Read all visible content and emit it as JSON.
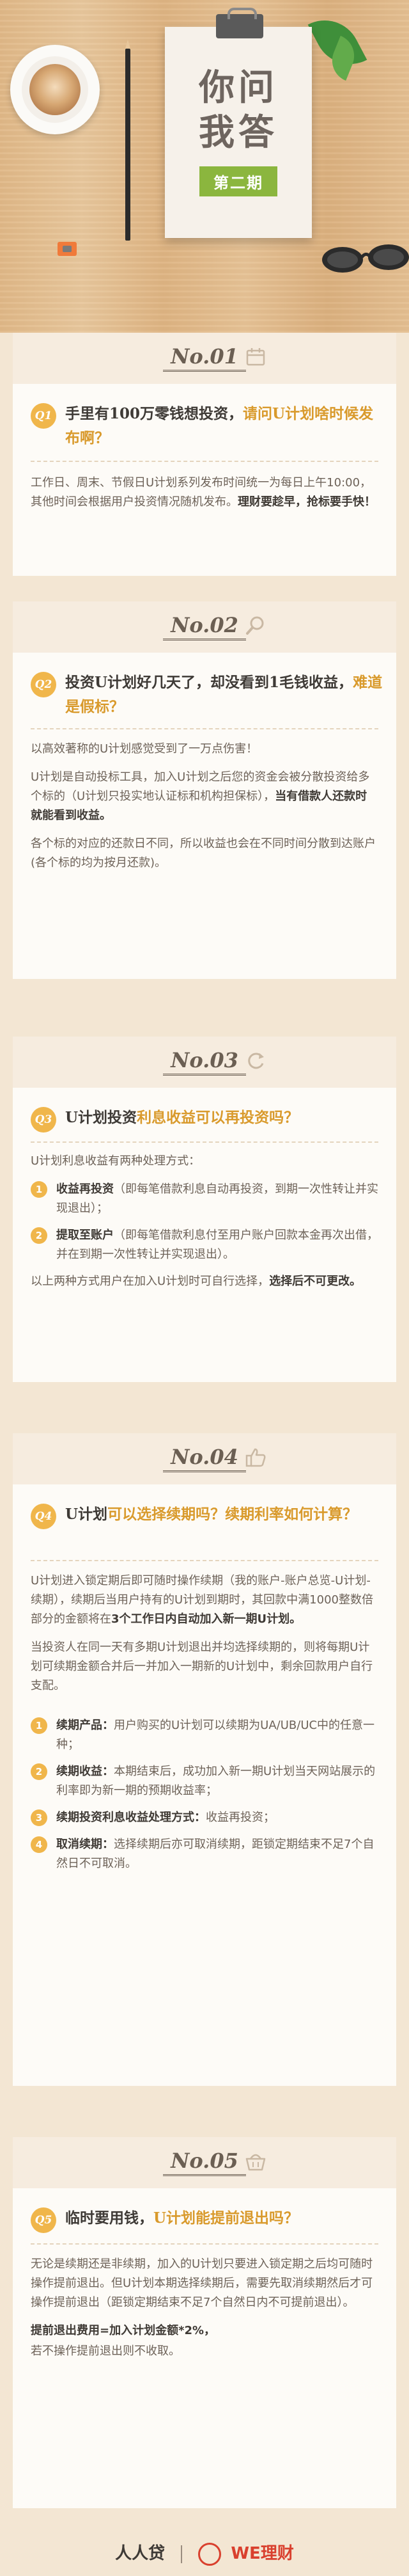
{
  "header": {
    "title_line1": "你问",
    "title_line2": "我答",
    "issue": "第二期"
  },
  "sections": [
    {
      "no": "No.01",
      "icon": "calendar-icon",
      "badge": "Q1",
      "question_pre": "手里有100万零钱想投资，",
      "question_hl": "请问U计划啥时候发布啊？",
      "paragraphs": [
        {
          "plain": "工作日、周末、节假日U计划系列发布时间统一为每日上午10:00，其他时间会根据用户投资情况随机发布。",
          "bold": "理财要趁早，抢标要手快！"
        }
      ]
    },
    {
      "no": "No.02",
      "icon": "magnifier-icon",
      "badge": "Q2",
      "question_pre": "投资U计划好几天了，却没看到1毛钱收益，",
      "question_hl": "难道是假标？",
      "paragraphs": [
        {
          "plain": "以高效著称的U计划感觉受到了一万点伤害！"
        },
        {
          "plain": "U计划是自动投标工具，加入U计划之后您的资金会被分散投资给多个标的（U计划只投实地认证标和机构担保标），",
          "bold": "当有借款人还款时就能看到收益。"
        },
        {
          "plain": "各个标的对应的还款日不同，所以收益也会在不同时间分散到达账户 (各个标的均为按月还款)。"
        }
      ]
    },
    {
      "no": "No.03",
      "icon": "refresh-icon",
      "badge": "Q3",
      "question_pre": "U计划投资",
      "question_hl": "利息收益可以再投资吗？",
      "intro": "U计划利息收益有两种处理方式：",
      "items": [
        {
          "n": "1",
          "bold": "收益再投资",
          "plain": "（即每笔借款利息自动再投资，到期一次性转让并实现退出）；"
        },
        {
          "n": "2",
          "bold": "提取至账户",
          "plain": "（即每笔借款利息付至用户账户回款本金再次出借，并在到期一次性转让并实现退出）。"
        }
      ],
      "outro_plain": "以上两种方式用户在加入U计划时可自行选择，",
      "outro_bold": "选择后不可更改。"
    },
    {
      "no": "No.04",
      "icon": "thumbs-up-icon",
      "badge": "Q4",
      "question_pre": "U计划",
      "question_hl": "可以选择续期吗？续期利率如何计算？",
      "paragraphs": [
        {
          "plain": "U计划进入锁定期后即可随时操作续期（我的账户-账户总览-U计划-续期），续期后当用户持有的U计划到期时，其回款中满1000整数倍部分的金额将在",
          "bold": "3个工作日内自动加入新一期U计划。"
        },
        {
          "plain": "当投资人在同一天有多期U计划退出并均选择续期的，则将每期U计划可续期金额合并后一并加入一期新的U计划中，剩余回款用户自行支配。"
        }
      ],
      "items": [
        {
          "n": "1",
          "bold": "续期产品：",
          "plain": "用户购买的U计划可以续期为UA/UB/UC中的任意一种；"
        },
        {
          "n": "2",
          "bold": "续期收益：",
          "plain": "本期结束后，成功加入新一期U计划当天网站展示的利率即为新一期的预期收益率；"
        },
        {
          "n": "3",
          "bold": "续期投资利息收益处理方式：",
          "plain": "收益再投资；"
        },
        {
          "n": "4",
          "bold": "取消续期：",
          "plain": "选择续期后亦可取消续期，距锁定期结束不足7个自然日不可取消。"
        }
      ]
    },
    {
      "no": "No.05",
      "icon": "basket-icon",
      "badge": "Q5",
      "question_pre": "临时要用钱，",
      "question_hl": "U计划能提前退出吗？",
      "paragraphs": [
        {
          "plain": "无论是续期还是非续期，加入的U计划只要进入锁定期之后均可随时操作提前退出。但U计划本期选择续期后，需要先取消续期然后才可操作提前退出（距锁定期结束不足7个自然日内不可提前退出）。"
        },
        {
          "plain": "",
          "bold": "提前退出费用=加入计划金额*2%，"
        },
        {
          "plain": "若不操作提前退出则不收取。"
        }
      ]
    }
  ],
  "footer": {
    "brand": "人人贷",
    "partner": "WE理财"
  }
}
